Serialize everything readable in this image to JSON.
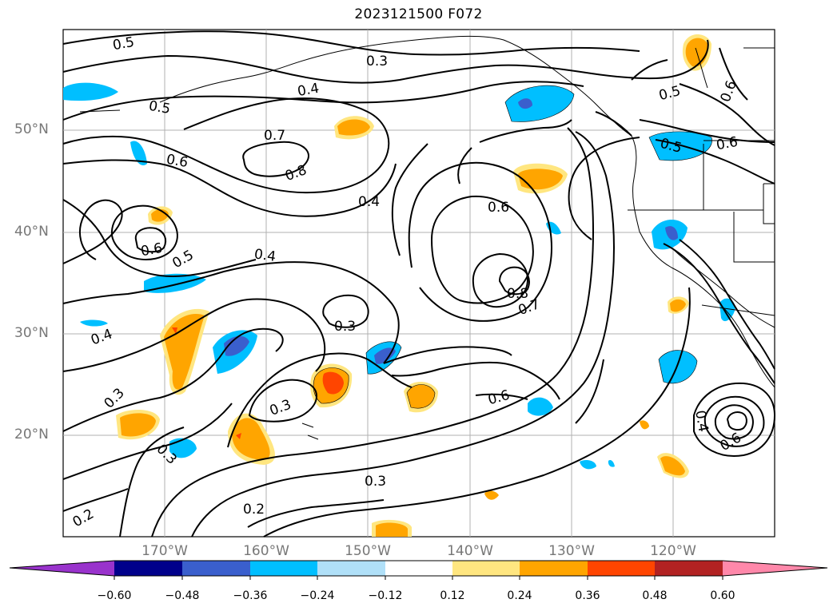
{
  "title": "2023121500 F072",
  "map": {
    "projection_region": "North Pacific",
    "lat_labels": [
      "50°N",
      "40°N",
      "30°N",
      "20°N"
    ],
    "lon_labels": [
      "170°W",
      "160°W",
      "150°W",
      "140°W",
      "130°W",
      "120°W"
    ],
    "contour_line_color": "#000000",
    "contour_labels": [
      "0.5",
      "0.3",
      "0.4",
      "0.5",
      "0.7",
      "0.6",
      "0.8",
      "0.4",
      "0.6",
      "0.5",
      "0.6",
      "0.4",
      "0.3",
      "0.3",
      "0.8",
      "0.7",
      "0.6",
      "0.4",
      "0.3",
      "0.3",
      "0.2",
      "0.3",
      "0.2",
      "0.5",
      "0.6",
      "0.5",
      "0.6",
      "0.4",
      "0.6"
    ]
  },
  "colorbar": {
    "ticks": [
      "−0.60",
      "−0.48",
      "−0.36",
      "−0.24",
      "−0.12",
      "0.12",
      "0.24",
      "0.36",
      "0.48",
      "0.60"
    ],
    "colors": [
      "#9933cc",
      "#00008b",
      "#3a5fcd",
      "#00bfff",
      "#b0e0f8",
      "#ffffff",
      "#ffe680",
      "#ffa500",
      "#ff4500",
      "#b22222",
      "#ff88aa"
    ]
  }
}
